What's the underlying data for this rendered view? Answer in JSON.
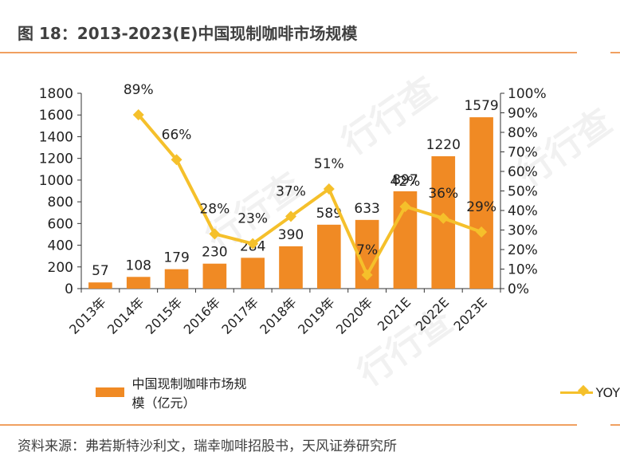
{
  "page": {
    "title": "图 18：2013-2023(E)中国现制咖啡市场规模",
    "source": "资料来源：弗若斯特沙利文，瑞幸咖啡招股书，天风证券研究所",
    "watermark": "行行查"
  },
  "colors": {
    "bar": "#f08a24",
    "line": "#f5c02b",
    "rule": "#f0a060",
    "axis": "#333333"
  },
  "chart_data": {
    "type": "bar",
    "categories": [
      "2013年",
      "2014年",
      "2015年",
      "2016年",
      "2017年",
      "2018年",
      "2019年",
      "2020年",
      "2021E",
      "2022E",
      "2023E"
    ],
    "series": [
      {
        "name": "中国现制咖啡市场规模（亿元）",
        "type": "bar",
        "axis": "left",
        "values": [
          57,
          108,
          179,
          230,
          284,
          390,
          589,
          633,
          897,
          1220,
          1579
        ]
      },
      {
        "name": "YOY",
        "type": "line",
        "axis": "right",
        "values": [
          null,
          89,
          66,
          28,
          23,
          37,
          51,
          7,
          42,
          36,
          29
        ],
        "labels": [
          "",
          "89%",
          "66%",
          "28%",
          "23%",
          "37%",
          "51%",
          "7%",
          "42%",
          "36%",
          "29%"
        ]
      }
    ],
    "ylim": [
      0,
      1800
    ],
    "yticks": [
      0,
      200,
      400,
      600,
      800,
      1000,
      1200,
      1400,
      1600,
      1800
    ],
    "y2lim": [
      0,
      100
    ],
    "y2ticks": [
      "0%",
      "10%",
      "20%",
      "30%",
      "40%",
      "50%",
      "60%",
      "70%",
      "80%",
      "90%",
      "100%"
    ],
    "legend": [
      "中国现制咖啡市场规模（亿元）",
      "YOY"
    ],
    "legend_position": "bottom"
  }
}
